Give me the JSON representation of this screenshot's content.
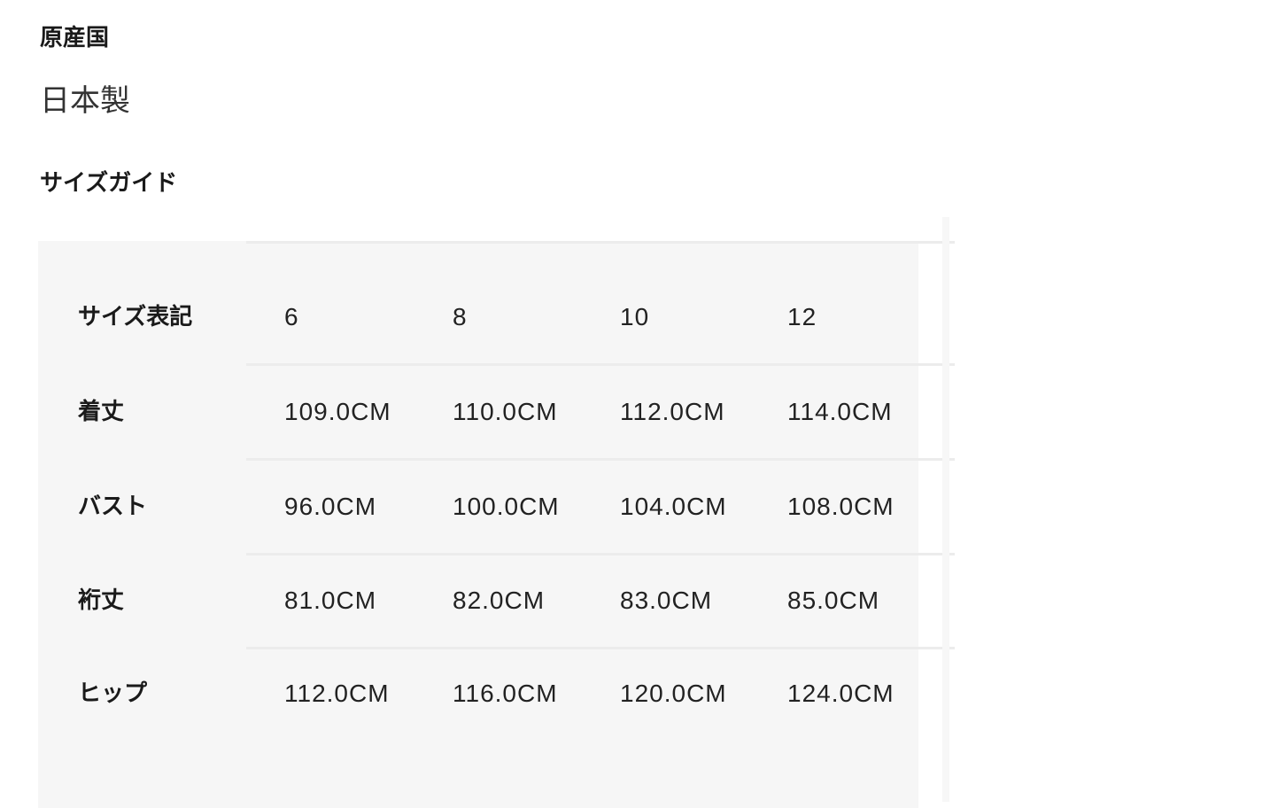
{
  "origin": {
    "heading": "原産国",
    "value": "日本製"
  },
  "size_guide": {
    "heading": "サイズガイド",
    "rows": [
      {
        "label": "サイズ表記",
        "values": [
          "6",
          "8",
          "10",
          "12"
        ]
      },
      {
        "label": "着丈",
        "values": [
          "109.0CM",
          "110.0CM",
          "112.0CM",
          "114.0CM"
        ]
      },
      {
        "label": "バスト",
        "values": [
          "96.0CM",
          "100.0CM",
          "104.0CM",
          "108.0CM"
        ]
      },
      {
        "label": "裄丈",
        "values": [
          "81.0CM",
          "82.0CM",
          "83.0CM",
          "85.0CM"
        ]
      },
      {
        "label": "ヒップ",
        "values": [
          "112.0CM",
          "116.0CM",
          "120.0CM",
          "124.0CM"
        ]
      }
    ]
  }
}
